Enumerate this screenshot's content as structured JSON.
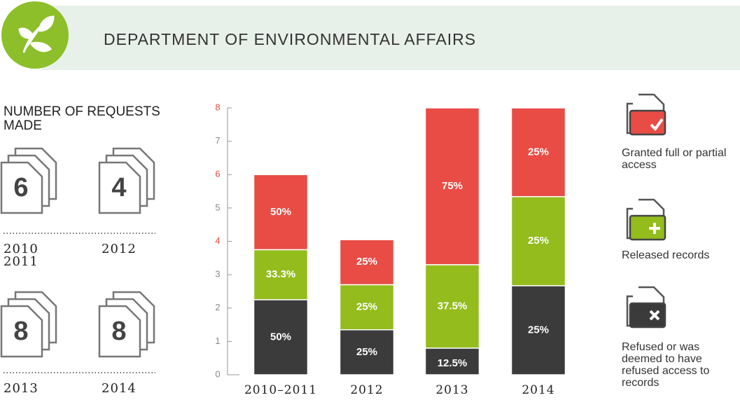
{
  "header": {
    "title": "DEPARTMENT OF ENVIRONMENTAL AFFAIRS"
  },
  "requests": {
    "title": "NUMBER OF REQUESTS MADE",
    "items": [
      {
        "count": 6,
        "year": "2010 2011"
      },
      {
        "count": 4,
        "year": "2012"
      },
      {
        "count": 8,
        "year": "2013"
      },
      {
        "count": 8,
        "year": "2014"
      }
    ]
  },
  "chart_data": {
    "type": "stacked_bar",
    "categories": [
      "2010–2011",
      "2012",
      "2013",
      "2014"
    ],
    "series": [
      {
        "name": "Refused or was deemed to have refused access to records",
        "color": "#3b3b3b",
        "values": [
          2.25,
          1.35,
          0.8,
          2.67
        ],
        "value_labels": [
          "50%",
          "25%",
          "12.5%",
          "25%"
        ]
      },
      {
        "name": "Released records",
        "color": "#93bc1c",
        "values": [
          1.5,
          1.35,
          2.5,
          2.67
        ],
        "value_labels": [
          "33.3%",
          "25%",
          "37.5%",
          "25%"
        ]
      },
      {
        "name": "Granted full or partial access",
        "color": "#e84c45",
        "values": [
          2.25,
          1.35,
          4.7,
          2.66
        ],
        "value_labels": [
          "50%",
          "25%",
          "75%",
          "25%"
        ]
      }
    ],
    "ylim": [
      0,
      8
    ],
    "yticks": [
      0,
      1,
      2,
      3,
      4,
      5,
      6,
      7,
      8
    ],
    "ytick_colors": [
      "#888888",
      "#888888",
      "#888888",
      "#888888",
      "#e84c45",
      "#888888",
      "#e84c45",
      "#888888",
      "#e84c45"
    ]
  }
}
